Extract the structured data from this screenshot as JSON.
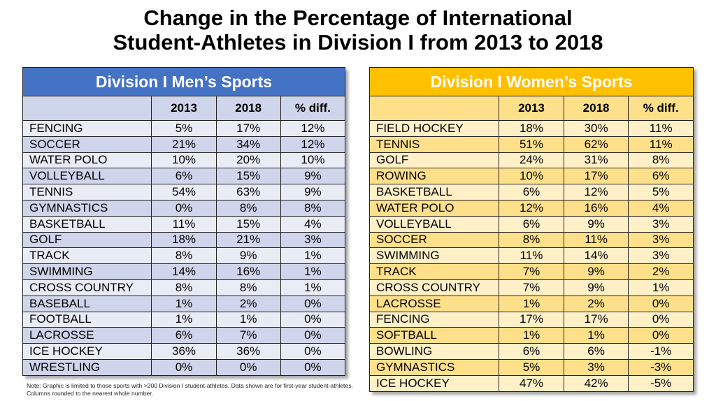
{
  "title_line1": "Change in the Percentage of International",
  "title_line2": "Student-Athletes in Division I from 2013 to 2018",
  "note": "Note: Graphic is limited to those sports with >200 Division I student-athletes. Data shown are for first-year student-athletes. Columns rounded to the nearest whole number.",
  "colors": {
    "men_header": "#4472C4",
    "women_header": "#FFC000"
  },
  "chart_data": [
    {
      "type": "table",
      "title": "Division I Men’s Sports",
      "columns": [
        "",
        "2013",
        "2018",
        "% diff."
      ],
      "rows": [
        [
          "FENCING",
          "5%",
          "17%",
          "12%"
        ],
        [
          "SOCCER",
          "21%",
          "34%",
          "12%"
        ],
        [
          "WATER POLO",
          "10%",
          "20%",
          "10%"
        ],
        [
          "VOLLEYBALL",
          "6%",
          "15%",
          "9%"
        ],
        [
          "TENNIS",
          "54%",
          "63%",
          "9%"
        ],
        [
          "GYMNASTICS",
          "0%",
          "8%",
          "8%"
        ],
        [
          "BASKETBALL",
          "11%",
          "15%",
          "4%"
        ],
        [
          "GOLF",
          "18%",
          "21%",
          "3%"
        ],
        [
          "TRACK",
          "8%",
          "9%",
          "1%"
        ],
        [
          "SWIMMING",
          "14%",
          "16%",
          "1%"
        ],
        [
          "CROSS COUNTRY",
          "8%",
          "8%",
          "1%"
        ],
        [
          "BASEBALL",
          "1%",
          "2%",
          "0%"
        ],
        [
          "FOOTBALL",
          "1%",
          "1%",
          "0%"
        ],
        [
          "LACROSSE",
          "6%",
          "7%",
          "0%"
        ],
        [
          "ICE HOCKEY",
          "36%",
          "36%",
          "0%"
        ],
        [
          "WRESTLING",
          "0%",
          "0%",
          "0%"
        ]
      ]
    },
    {
      "type": "table",
      "title": "Division I Women’s Sports",
      "columns": [
        "",
        "2013",
        "2018",
        "% diff."
      ],
      "rows": [
        [
          "FIELD HOCKEY",
          "18%",
          "30%",
          "11%"
        ],
        [
          "TENNIS",
          "51%",
          "62%",
          "11%"
        ],
        [
          "GOLF",
          "24%",
          "31%",
          "8%"
        ],
        [
          "ROWING",
          "10%",
          "17%",
          "6%"
        ],
        [
          "BASKETBALL",
          "6%",
          "12%",
          "5%"
        ],
        [
          "WATER POLO",
          "12%",
          "16%",
          "4%"
        ],
        [
          "VOLLEYBALL",
          "6%",
          "9%",
          "3%"
        ],
        [
          "SOCCER",
          "8%",
          "11%",
          "3%"
        ],
        [
          "SWIMMING",
          "11%",
          "14%",
          "3%"
        ],
        [
          "TRACK",
          "7%",
          "9%",
          "2%"
        ],
        [
          "CROSS COUNTRY",
          "7%",
          "9%",
          "1%"
        ],
        [
          "LACROSSE",
          "1%",
          "2%",
          "0%"
        ],
        [
          "FENCING",
          "17%",
          "17%",
          "0%"
        ],
        [
          "SOFTBALL",
          "1%",
          "1%",
          "0%"
        ],
        [
          "BOWLING",
          "6%",
          "6%",
          "-1%"
        ],
        [
          "GYMNASTICS",
          "5%",
          "3%",
          "-3%"
        ],
        [
          "ICE HOCKEY",
          "47%",
          "42%",
          "-5%"
        ]
      ]
    }
  ]
}
